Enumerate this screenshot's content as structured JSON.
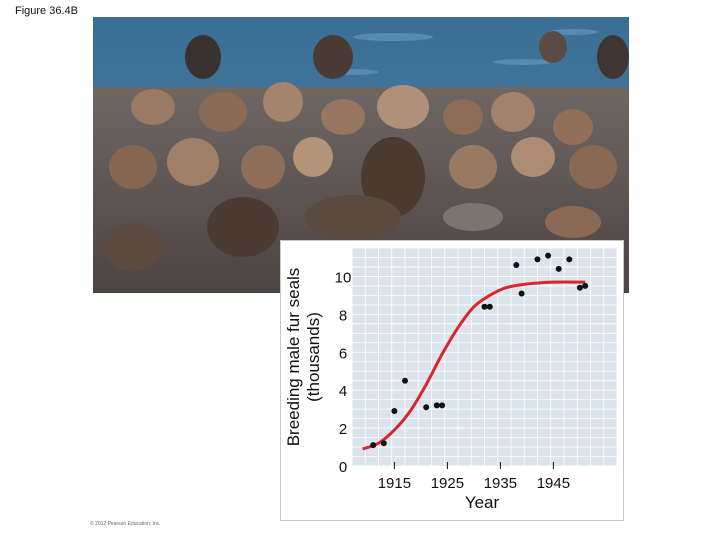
{
  "figure_label": "Figure 36.4B",
  "copyright": "© 2012 Pearson Education, Inc.",
  "photo": {
    "subject_icon": "fur-seal-colony-photo"
  },
  "colors": {
    "curve": "#d8262e",
    "plot_bg": "#dbe4ec",
    "points": "#111111",
    "grid": "#ffffff"
  },
  "chart_data": {
    "type": "scatter",
    "title": "",
    "xlabel": "Year",
    "ylabel_line1": "Breeding male fur seals",
    "ylabel_line2": "(thousands)",
    "xlim": [
      1907,
      1957
    ],
    "ylim": [
      0,
      11.5
    ],
    "x_ticks": [
      1915,
      1925,
      1935,
      1945
    ],
    "y_ticks": [
      0,
      2,
      4,
      6,
      8,
      10
    ],
    "grid": true,
    "series": [
      {
        "points": [
          [
            1911,
            1.1
          ],
          [
            1913,
            1.2
          ],
          [
            1915,
            2.9
          ],
          [
            1917,
            4.5
          ],
          [
            1921,
            3.1
          ],
          [
            1923,
            3.2
          ],
          [
            1924,
            3.2
          ],
          [
            1932,
            8.4
          ],
          [
            1933,
            8.4
          ],
          [
            1938,
            10.6
          ],
          [
            1939,
            9.1
          ],
          [
            1942,
            10.9
          ],
          [
            1944,
            11.1
          ],
          [
            1946,
            10.4
          ],
          [
            1948,
            10.9
          ],
          [
            1950,
            9.4
          ],
          [
            1951,
            9.5
          ]
        ]
      }
    ],
    "fitted_curve": {
      "type": "logistic",
      "points": [
        [
          1909,
          0.9
        ],
        [
          1912,
          1.2
        ],
        [
          1915,
          1.9
        ],
        [
          1918,
          2.9
        ],
        [
          1921,
          4.3
        ],
        [
          1924,
          5.9
        ],
        [
          1927,
          7.3
        ],
        [
          1930,
          8.4
        ],
        [
          1933,
          9.0
        ],
        [
          1936,
          9.4
        ],
        [
          1940,
          9.6
        ],
        [
          1945,
          9.7
        ],
        [
          1951,
          9.7
        ]
      ]
    }
  }
}
